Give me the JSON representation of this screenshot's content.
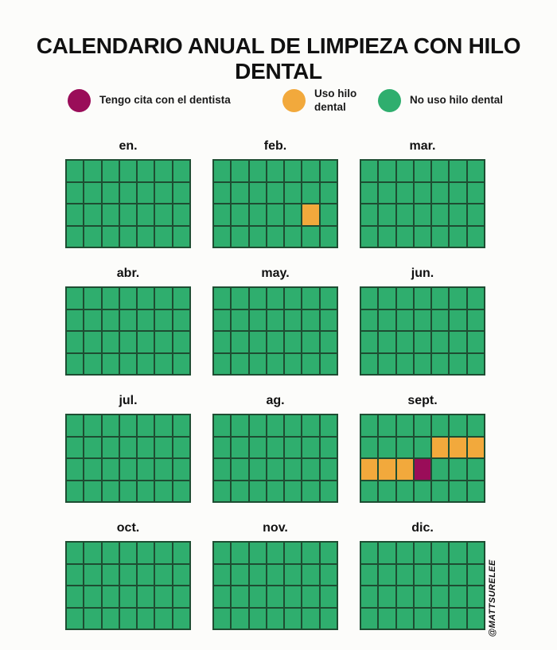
{
  "watermark": "@MATTSURELEE",
  "colors": {
    "green": "#2fae6e",
    "orange": "#f2a93c",
    "magenta": "#9a0d59",
    "grid_line": "#1e4d32",
    "background": "#fcfcfa",
    "text": "#111111"
  },
  "cell_codes": {
    "g": "green",
    "o": "orange",
    "m": "magenta"
  },
  "chart_data": {
    "type": "heatmap",
    "title": "CALENDARIO ANUAL DE LIMPIEZA CON HILO DENTAL",
    "legend": [
      {
        "label": "Tengo cita con el dentista",
        "color_key": "magenta"
      },
      {
        "label": "Uso hilo dental",
        "color_key": "orange"
      },
      {
        "label": "No uso hilo dental",
        "color_key": "green"
      }
    ],
    "cell_meaning": {
      "g": "No uso hilo dental",
      "o": "Uso hilo dental",
      "m": "Tengo cita con el dentista"
    },
    "grid_shape": {
      "columns": 7,
      "rows": 4
    },
    "months": [
      {
        "label": "en.",
        "rows": [
          "ggggggg",
          "ggggggg",
          "ggggggg",
          "ggggggg"
        ]
      },
      {
        "label": "feb.",
        "rows": [
          "ggggggg",
          "ggggggg",
          "gggggog",
          "ggggggg"
        ]
      },
      {
        "label": "mar.",
        "rows": [
          "ggggggg",
          "ggggggg",
          "ggggggg",
          "ggggggg"
        ]
      },
      {
        "label": "abr.",
        "rows": [
          "ggggggg",
          "ggggggg",
          "ggggggg",
          "ggggggg"
        ]
      },
      {
        "label": "may.",
        "rows": [
          "ggggggg",
          "ggggggg",
          "ggggggg",
          "ggggggg"
        ]
      },
      {
        "label": "jun.",
        "rows": [
          "ggggggg",
          "ggggggg",
          "ggggggg",
          "ggggggg"
        ]
      },
      {
        "label": "jul.",
        "rows": [
          "ggggggg",
          "ggggggg",
          "ggggggg",
          "ggggggg"
        ]
      },
      {
        "label": "ag.",
        "rows": [
          "ggggggg",
          "ggggggg",
          "ggggggg",
          "ggggggg"
        ]
      },
      {
        "label": "sept.",
        "rows": [
          "ggggggg",
          "ggggooo",
          "ooomggg",
          "ggggggg"
        ]
      },
      {
        "label": "oct.",
        "rows": [
          "ggggggg",
          "ggggggg",
          "ggggggg",
          "ggggggg"
        ]
      },
      {
        "label": "nov.",
        "rows": [
          "ggggggg",
          "ggggggg",
          "ggggggg",
          "ggggggg"
        ]
      },
      {
        "label": "dic.",
        "rows": [
          "ggggggg",
          "ggggggg",
          "ggggggg",
          "ggggggg"
        ]
      }
    ]
  }
}
